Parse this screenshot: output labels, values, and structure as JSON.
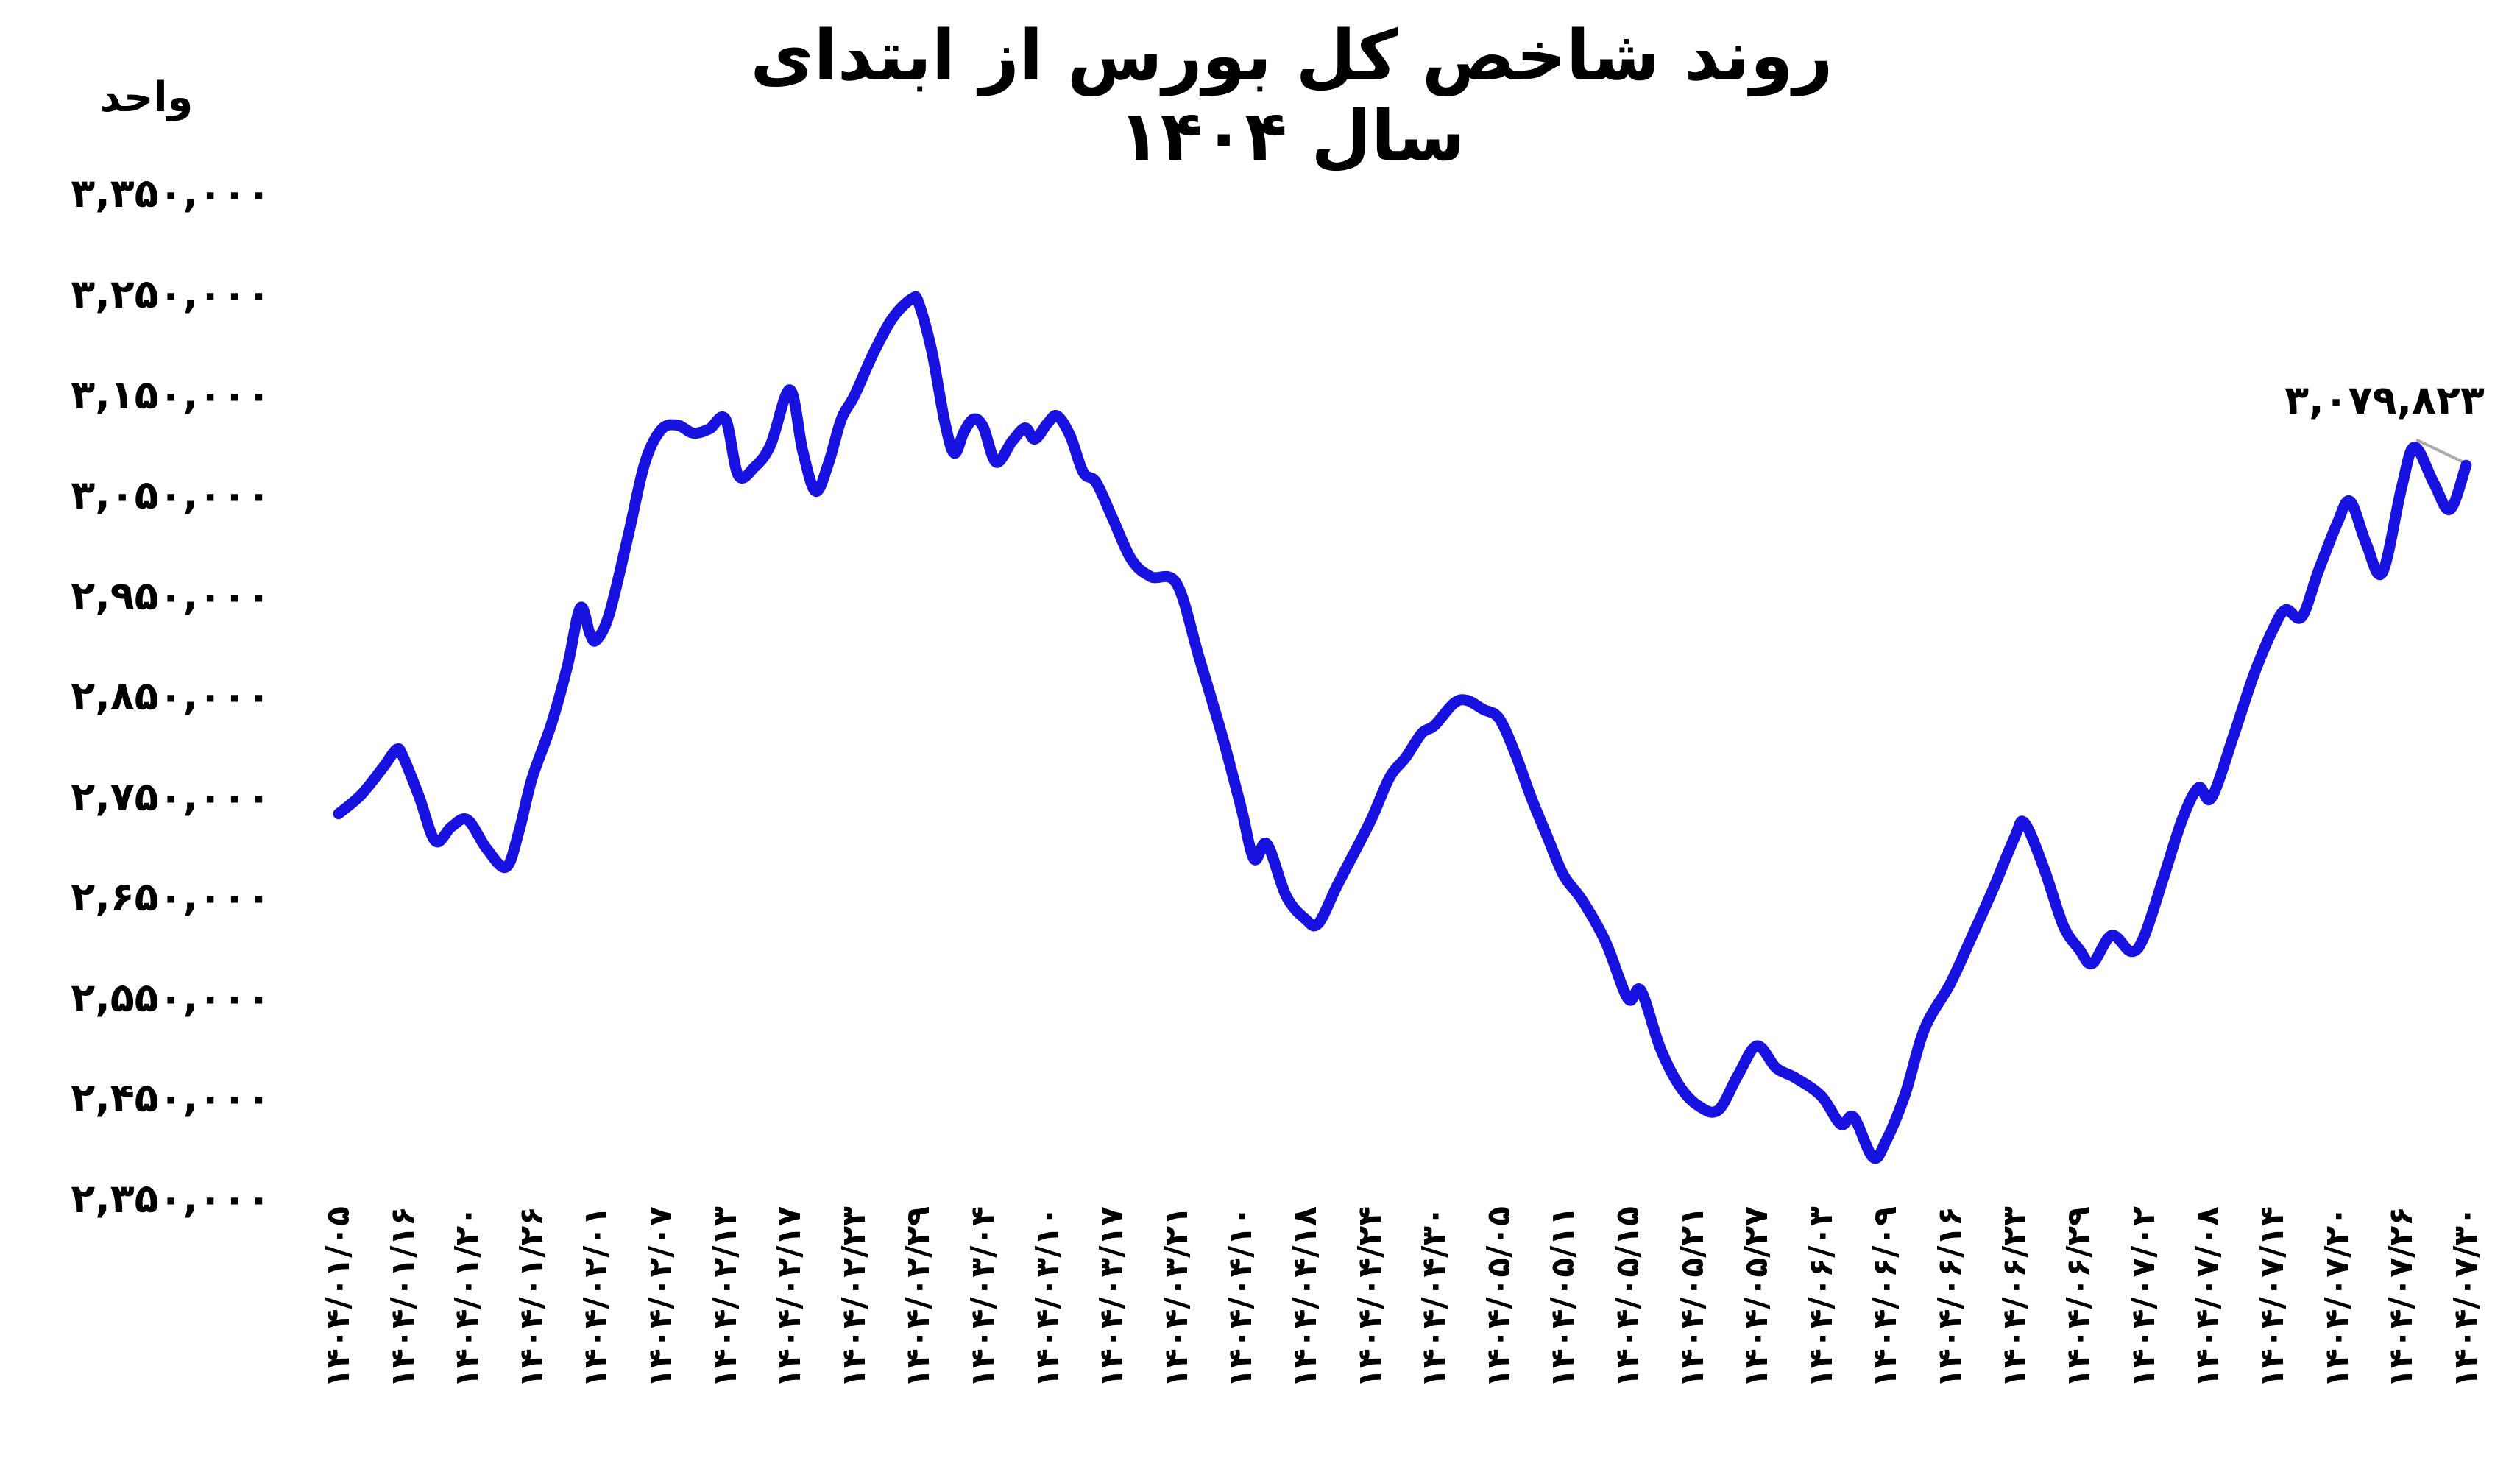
{
  "chart_data": {
    "type": "line",
    "title": "روند شاخص کل بورس از ابتدای سال ۱۴۰۴",
    "ylabel": "واحد",
    "line_color": "#1712e0",
    "leader_color": "#ababab",
    "background": "#ffffff",
    "grid": false,
    "legend_position": "none",
    "ylim": [
      2350000,
      3350000
    ],
    "y_ticks": [
      {
        "label": "۳,۳۵۰,۰۰۰",
        "value": 3350000
      },
      {
        "label": "۳,۲۵۰,۰۰۰",
        "value": 3250000
      },
      {
        "label": "۳,۱۵۰,۰۰۰",
        "value": 3150000
      },
      {
        "label": "۳,۰۵۰,۰۰۰",
        "value": 3050000
      },
      {
        "label": "۲,۹۵۰,۰۰۰",
        "value": 2950000
      },
      {
        "label": "۲,۸۵۰,۰۰۰",
        "value": 2850000
      },
      {
        "label": "۲,۷۵۰,۰۰۰",
        "value": 2750000
      },
      {
        "label": "۲,۶۵۰,۰۰۰",
        "value": 2650000
      },
      {
        "label": "۲,۵۵۰,۰۰۰",
        "value": 2550000
      },
      {
        "label": "۲,۴۵۰,۰۰۰",
        "value": 2450000
      },
      {
        "label": "۲,۳۵۰,۰۰۰",
        "value": 2350000
      }
    ],
    "x_ticks": [
      "۱۴۰۴/۰۱/۰۵",
      "۱۴۰۴/۰۱/۱۶",
      "۱۴۰۴/۰۱/۲۰",
      "۱۴۰۴/۰۱/۲۶",
      "۱۴۰۴/۰۲/۰۱",
      "۱۴۰۴/۰۲/۰۷",
      "۱۴۰۴/۰۲/۱۳",
      "۱۴۰۴/۰۲/۱۷",
      "۱۴۰۴/۰۲/۲۳",
      "۱۴۰۴/۰۲/۲۹",
      "۱۴۰۴/۰۳/۰۴",
      "۱۴۰۴/۰۳/۱۰",
      "۱۴۰۴/۰۳/۱۷",
      "۱۴۰۴/۰۳/۲۱",
      "۱۴۰۴/۰۴/۱۰",
      "۱۴۰۴/۰۴/۱۸",
      "۱۴۰۴/۰۴/۲۴",
      "۱۴۰۴/۰۴/۳۰",
      "۱۴۰۴/۰۵/۰۵",
      "۱۴۰۴/۰۵/۱۱",
      "۱۴۰۴/۰۵/۱۵",
      "۱۴۰۴/۰۵/۲۱",
      "۱۴۰۴/۰۵/۲۷",
      "۱۴۰۴/۰۶/۰۳",
      "۱۴۰۴/۰۶/۰۹",
      "۱۴۰۴/۰۶/۱۶",
      "۱۴۰۴/۰۶/۲۳",
      "۱۴۰۴/۰۶/۲۹",
      "۱۴۰۴/۰۷/۰۲",
      "۱۴۰۴/۰۷/۰۸",
      "۱۴۰۴/۰۷/۱۴",
      "۱۴۰۴/۰۷/۲۰",
      "۱۴۰۴/۰۷/۲۶",
      "۱۴۰۴/۰۷/۳۰"
    ],
    "annotation": {
      "label": "۳,۰۷۹,۸۲۳",
      "value": 3079823
    },
    "series": [
      {
        "points": [
          [
            0,
            2733000
          ],
          [
            0.35,
            2752000
          ],
          [
            0.7,
            2780000
          ],
          [
            0.9,
            2797000
          ],
          [
            1,
            2790000
          ],
          [
            1.25,
            2750000
          ],
          [
            1.5,
            2706000
          ],
          [
            1.75,
            2720000
          ],
          [
            2,
            2727000
          ],
          [
            2.3,
            2698000
          ],
          [
            2.6,
            2680000
          ],
          [
            2.8,
            2716000
          ],
          [
            3,
            2768000
          ],
          [
            3.3,
            2822000
          ],
          [
            3.55,
            2880000
          ],
          [
            3.75,
            2938000
          ],
          [
            3.9,
            2912000
          ],
          [
            4,
            2906000
          ],
          [
            4.2,
            2932000
          ],
          [
            4.5,
            3012000
          ],
          [
            4.75,
            3082000
          ],
          [
            5,
            3115000
          ],
          [
            5.25,
            3120000
          ],
          [
            5.5,
            3112000
          ],
          [
            5.75,
            3116000
          ],
          [
            6,
            3126000
          ],
          [
            6.2,
            3070000
          ],
          [
            6.45,
            3078000
          ],
          [
            6.7,
            3100000
          ],
          [
            7,
            3155000
          ],
          [
            7.2,
            3094000
          ],
          [
            7.4,
            3054000
          ],
          [
            7.6,
            3082000
          ],
          [
            7.8,
            3126000
          ],
          [
            8,
            3149000
          ],
          [
            8.3,
            3192000
          ],
          [
            8.6,
            3227000
          ],
          [
            8.9,
            3246000
          ],
          [
            9,
            3241000
          ],
          [
            9.2,
            3194000
          ],
          [
            9.4,
            3124000
          ],
          [
            9.55,
            3092000
          ],
          [
            9.7,
            3113000
          ],
          [
            9.85,
            3126000
          ],
          [
            10,
            3118000
          ],
          [
            10.2,
            3083000
          ],
          [
            10.45,
            3104000
          ],
          [
            10.65,
            3117000
          ],
          [
            10.8,
            3106000
          ],
          [
            11,
            3122000
          ],
          [
            11.15,
            3129000
          ],
          [
            11.35,
            3109000
          ],
          [
            11.55,
            3073000
          ],
          [
            11.75,
            3063000
          ],
          [
            12,
            3028000
          ],
          [
            12.3,
            2986000
          ],
          [
            12.6,
            2969000
          ],
          [
            13,
            2962000
          ],
          [
            13.35,
            2888000
          ],
          [
            13.7,
            2812000
          ],
          [
            14,
            2739000
          ],
          [
            14.2,
            2688000
          ],
          [
            14.4,
            2703000
          ],
          [
            14.7,
            2651000
          ],
          [
            15,
            2628000
          ],
          [
            15.2,
            2624000
          ],
          [
            15.5,
            2663000
          ],
          [
            16,
            2725000
          ],
          [
            16.3,
            2769000
          ],
          [
            16.55,
            2789000
          ],
          [
            16.8,
            2813000
          ],
          [
            17,
            2821000
          ],
          [
            17.3,
            2843000
          ],
          [
            17.5,
            2846000
          ],
          [
            17.75,
            2837000
          ],
          [
            18,
            2828000
          ],
          [
            18.25,
            2793000
          ],
          [
            18.5,
            2749000
          ],
          [
            18.75,
            2710000
          ],
          [
            19,
            2672000
          ],
          [
            19.3,
            2646000
          ],
          [
            19.65,
            2606000
          ],
          [
            20,
            2549000
          ],
          [
            20.2,
            2557000
          ],
          [
            20.5,
            2500000
          ],
          [
            20.8,
            2462000
          ],
          [
            21.1,
            2442000
          ],
          [
            21.4,
            2438000
          ],
          [
            21.7,
            2472000
          ],
          [
            22,
            2502000
          ],
          [
            22.3,
            2480000
          ],
          [
            22.6,
            2470000
          ],
          [
            23,
            2452000
          ],
          [
            23.3,
            2424000
          ],
          [
            23.5,
            2431000
          ],
          [
            23.8,
            2391000
          ],
          [
            24,
            2407000
          ],
          [
            24.3,
            2454000
          ],
          [
            24.6,
            2519000
          ],
          [
            25,
            2564000
          ],
          [
            25.3,
            2606000
          ],
          [
            25.65,
            2656000
          ],
          [
            26,
            2710000
          ],
          [
            26.15,
            2724000
          ],
          [
            26.45,
            2679000
          ],
          [
            26.75,
            2622000
          ],
          [
            27,
            2598000
          ],
          [
            27.2,
            2584000
          ],
          [
            27.5,
            2612000
          ],
          [
            27.8,
            2596000
          ],
          [
            28,
            2610000
          ],
          [
            28.3,
            2668000
          ],
          [
            28.6,
            2728000
          ],
          [
            28.85,
            2759000
          ],
          [
            29.05,
            2749000
          ],
          [
            29.4,
            2812000
          ],
          [
            29.7,
            2870000
          ],
          [
            30,
            2916000
          ],
          [
            30.2,
            2936000
          ],
          [
            30.45,
            2929000
          ],
          [
            30.7,
            2973000
          ],
          [
            31,
            3022000
          ],
          [
            31.2,
            3044000
          ],
          [
            31.45,
            3002000
          ],
          [
            31.7,
            2973000
          ],
          [
            32,
            3058000
          ],
          [
            32.2,
            3098000
          ],
          [
            32.5,
            3062000
          ],
          [
            32.75,
            3036000
          ],
          [
            33,
            3079823
          ]
        ]
      }
    ]
  }
}
